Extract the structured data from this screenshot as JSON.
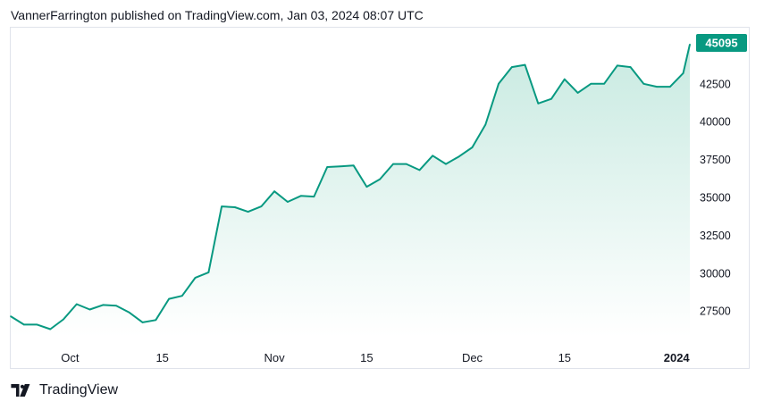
{
  "header": {
    "publisher_line": "VannerFarrington published on TradingView.com, Jan 03, 2024 08:07 UTC"
  },
  "footer": {
    "brand": "TradingView",
    "logo_icon": "tradingview-logo-icon"
  },
  "colors": {
    "line": "#089981",
    "area_top": "#c8eae1",
    "area_bottom": "#ffffff",
    "price_tag_bg": "#089981",
    "border": "#e0e3eb"
  },
  "chart_data": {
    "type": "area",
    "title": "",
    "xlabel": "",
    "ylabel": "",
    "x_tick_labels": [
      "Oct",
      "15",
      "Nov",
      "15",
      "Dec",
      "15",
      "2024"
    ],
    "y_tick_labels": [
      "27500",
      "30000",
      "32500",
      "35000",
      "37500",
      "40000",
      "42500"
    ],
    "ylim": [
      25800,
      46200
    ],
    "last_price": "45095",
    "grid": false,
    "x": [
      "2023-09-22",
      "2023-09-24",
      "2023-09-26",
      "2023-09-28",
      "2023-09-30",
      "2023-10-02",
      "2023-10-04",
      "2023-10-06",
      "2023-10-08",
      "2023-10-10",
      "2023-10-12",
      "2023-10-14",
      "2023-10-16",
      "2023-10-18",
      "2023-10-20",
      "2023-10-22",
      "2023-10-24",
      "2023-10-26",
      "2023-10-28",
      "2023-10-30",
      "2023-11-01",
      "2023-11-03",
      "2023-11-05",
      "2023-11-07",
      "2023-11-09",
      "2023-11-11",
      "2023-11-13",
      "2023-11-15",
      "2023-11-17",
      "2023-11-19",
      "2023-11-21",
      "2023-11-23",
      "2023-11-25",
      "2023-11-27",
      "2023-11-29",
      "2023-12-01",
      "2023-12-03",
      "2023-12-05",
      "2023-12-07",
      "2023-12-09",
      "2023-12-11",
      "2023-12-13",
      "2023-12-15",
      "2023-12-17",
      "2023-12-19",
      "2023-12-21",
      "2023-12-23",
      "2023-12-25",
      "2023-12-27",
      "2023-12-29",
      "2023-12-31",
      "2024-01-02",
      "2024-01-03"
    ],
    "series": [
      {
        "values": [
          27150,
          26600,
          26600,
          26300,
          26950,
          27950,
          27600,
          27900,
          27850,
          27400,
          26750,
          26900,
          28300,
          28500,
          29700,
          30050,
          34400,
          34350,
          34050,
          34400,
          35400,
          34700,
          35100,
          35050,
          37000,
          37050,
          37100,
          35700,
          36200,
          37200,
          37200,
          36800,
          37750,
          37200,
          37700,
          38300,
          39800,
          42500,
          43600,
          43750,
          41200,
          41500,
          42800,
          41900,
          42500,
          42500,
          43700,
          43600,
          42500,
          42300,
          42300,
          43200,
          45095
        ]
      }
    ]
  }
}
